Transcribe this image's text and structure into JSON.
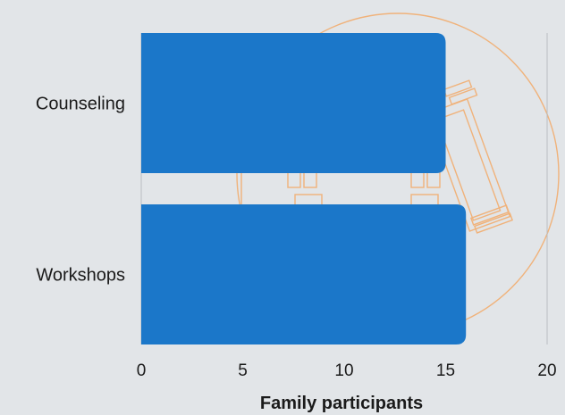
{
  "chart_data": {
    "type": "bar",
    "orientation": "horizontal",
    "categories": [
      "Counseling",
      "Workshops"
    ],
    "values": [
      15,
      16
    ],
    "xlabel": "Family participants",
    "ylabel": "",
    "xlim": [
      0,
      20
    ],
    "xticks": [
      0,
      5,
      10,
      15,
      20
    ],
    "grid": true,
    "legend": "none",
    "bar_color": "#1b77c9",
    "background_color": "#e2e5e8",
    "decoration_color": "#f0b27a"
  }
}
